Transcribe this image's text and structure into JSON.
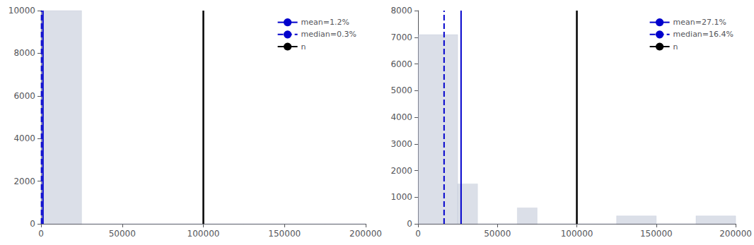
{
  "chart_data": [
    {
      "type": "histogram",
      "bins": [
        0,
        25000,
        50000,
        75000,
        100000,
        125000,
        150000,
        175000,
        200000
      ],
      "values": [
        10000,
        0,
        0,
        0,
        0,
        0,
        0,
        0
      ],
      "color": "#b0b8cc",
      "xlim": [
        0,
        200000
      ],
      "ylim": [
        0,
        10000
      ],
      "xticks": [
        0,
        50000,
        100000,
        150000,
        200000
      ],
      "yticks": [
        0,
        2000,
        4000,
        6000,
        8000,
        10000
      ],
      "grid": false,
      "legend": "upper right",
      "series": [
        {
          "name": "mean=1.2%",
          "type": "vline",
          "x": 1200,
          "color": "#0000cc",
          "line_style": "solid"
        },
        {
          "name": "median=0.3%",
          "type": "vline",
          "x": 300,
          "color": "#0000cc",
          "line_style": "dashed"
        },
        {
          "name": "n",
          "type": "vline",
          "x": 100000,
          "color": "#000000",
          "line_style": "solid"
        }
      ]
    },
    {
      "type": "histogram",
      "bins": [
        0,
        25000,
        37500,
        62500,
        75000,
        100000,
        125000,
        150000,
        175000,
        200000
      ],
      "values": [
        7100,
        1500,
        0,
        600,
        0,
        0,
        300,
        0,
        300
      ],
      "color": "#b0b8cc",
      "xlim": [
        0,
        200000
      ],
      "ylim": [
        0,
        8000
      ],
      "xticks": [
        0,
        50000,
        100000,
        150000,
        200000
      ],
      "yticks": [
        0,
        1000,
        2000,
        3000,
        4000,
        5000,
        6000,
        7000,
        8000
      ],
      "grid": false,
      "legend": "upper right",
      "series": [
        {
          "name": "mean=27.1%",
          "type": "vline",
          "x": 27100,
          "color": "#0000cc",
          "line_style": "solid"
        },
        {
          "name": "median=16.4%",
          "type": "vline",
          "x": 16400,
          "color": "#0000cc",
          "line_style": "dashed"
        },
        {
          "name": "n",
          "type": "vline",
          "x": 100000,
          "color": "#000000",
          "line_style": "solid"
        }
      ]
    }
  ]
}
